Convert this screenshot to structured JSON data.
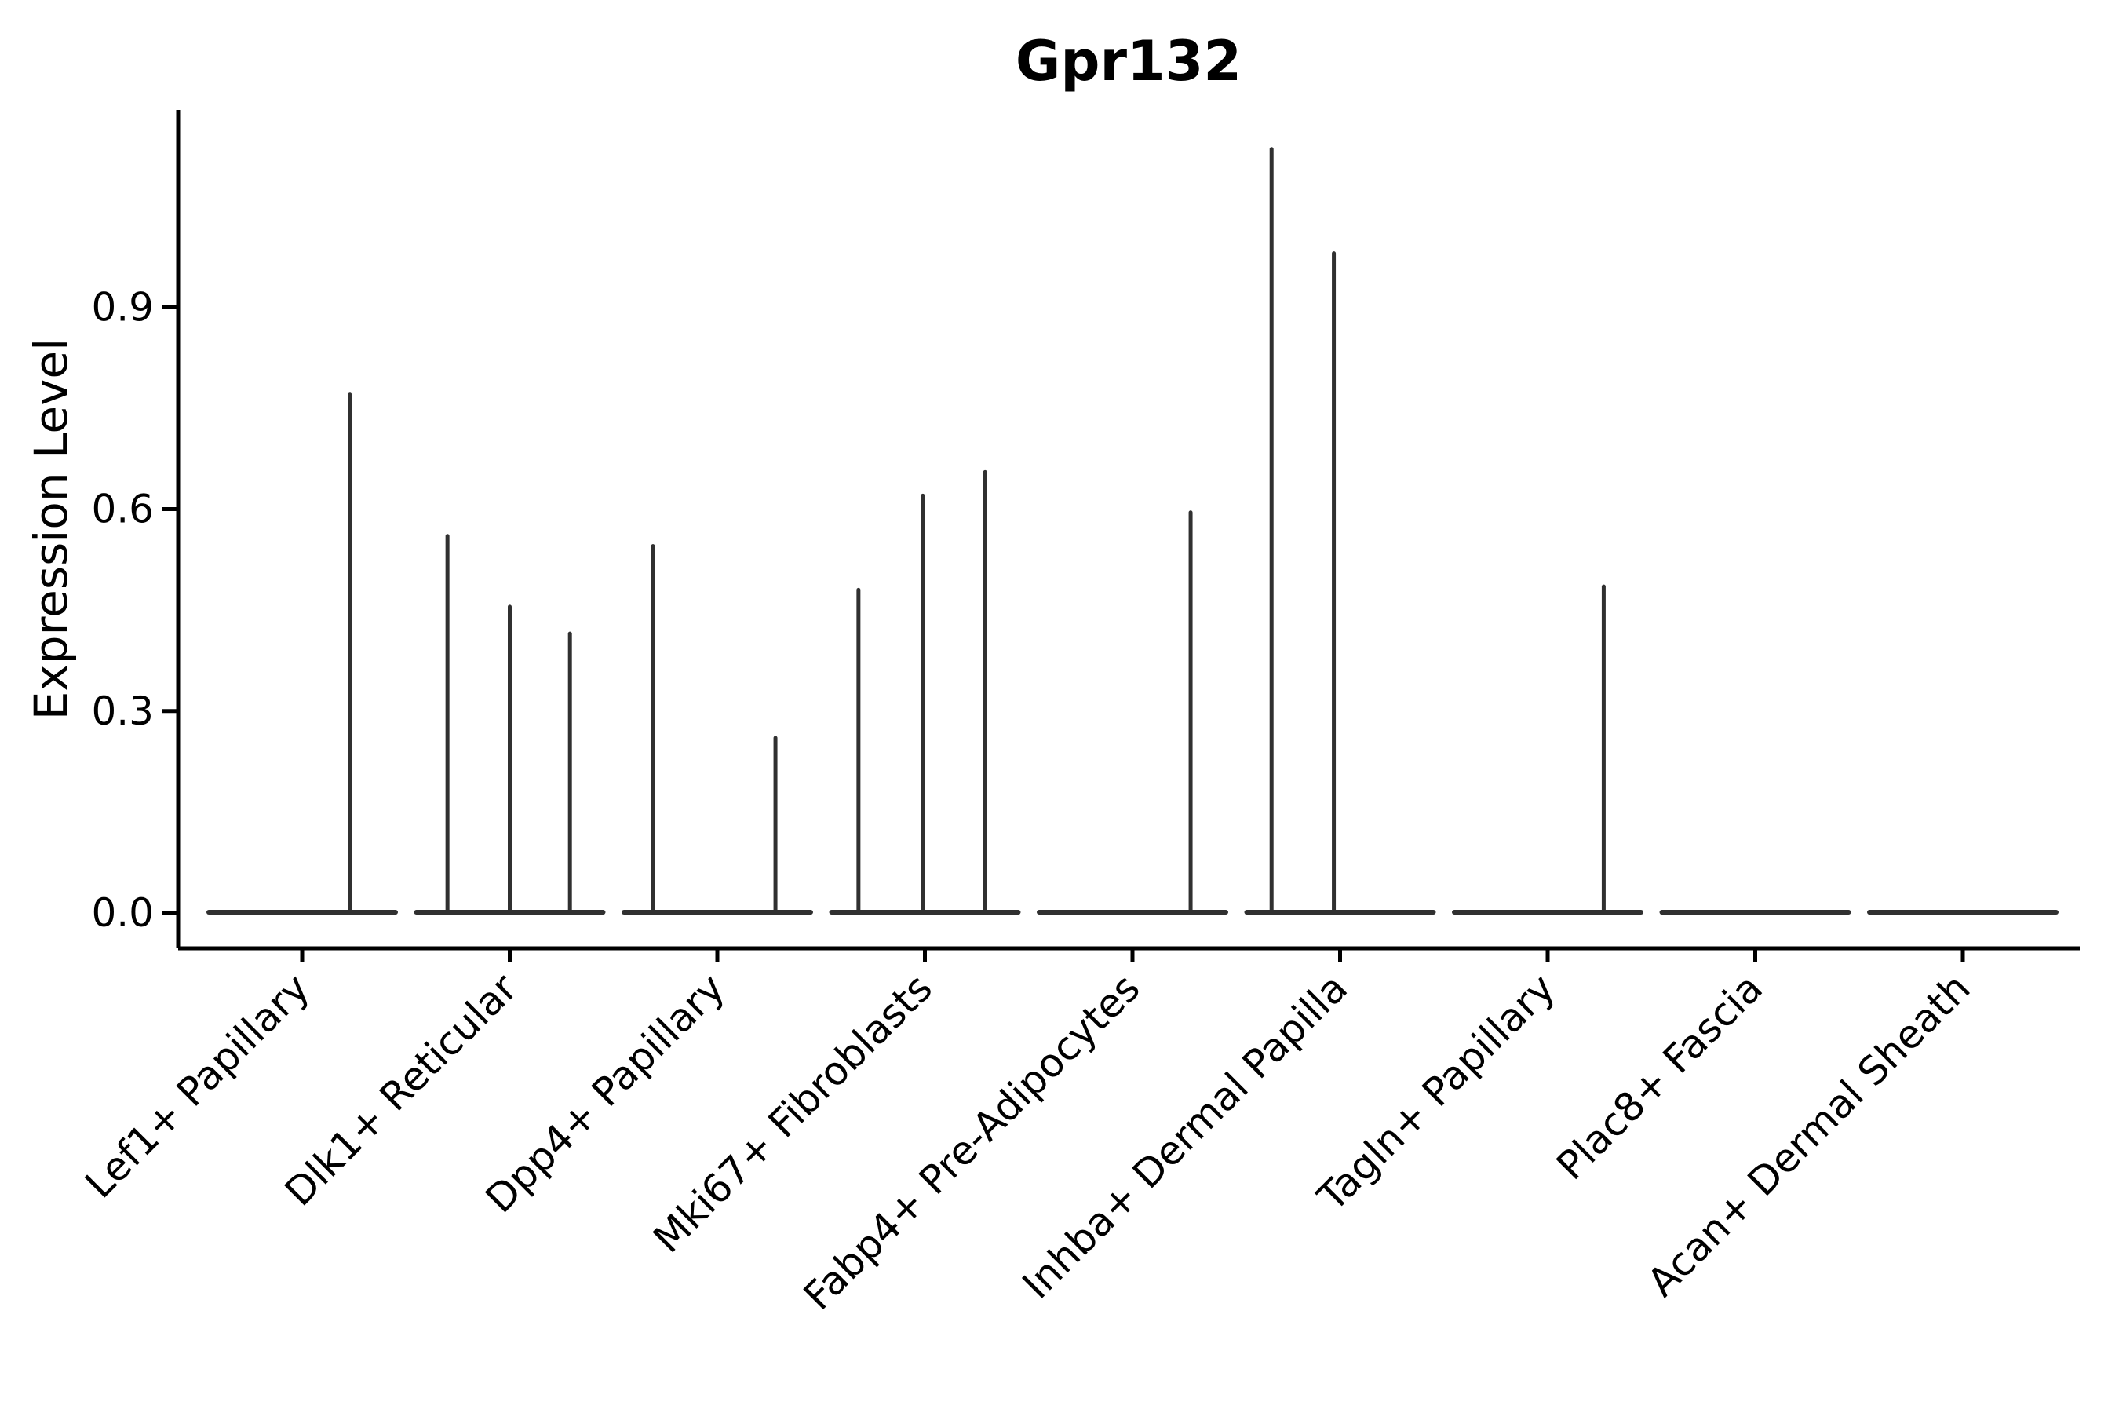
{
  "title": "Gpr132",
  "chart_data": {
    "type": "violin",
    "title": "Gpr132",
    "xlabel": "",
    "ylabel": "Expression Level",
    "legend_position": "none",
    "grid": false,
    "ylim": [
      -0.05,
      1.19
    ],
    "yticks": [
      {
        "value": 0.0,
        "label": "0.0"
      },
      {
        "value": 0.3,
        "label": "0.3"
      },
      {
        "value": 0.6,
        "label": "0.6"
      },
      {
        "value": 0.9,
        "label": "0.9"
      }
    ],
    "colors": {
      "violin": "#303030",
      "axis": "#000000",
      "text": "#000000",
      "background": "#ffffff"
    },
    "violin_halfwidth": 0.45,
    "categories": [
      "Lef1+ Papillary",
      "Dlk1+ Reticular",
      "Dpp4+ Papillary",
      "Mki67+ Fibroblasts",
      "Fabp4+ Pre-Adipocytes",
      "Inhba+ Dermal Papilla",
      "Tagln+ Papillary",
      "Plac8+ Fascia",
      "Acan+ Dermal Sheath"
    ],
    "series": [
      {
        "category": "Lef1+ Papillary",
        "baseline_value": 0.0,
        "spikes": [
          {
            "offset": 0.23,
            "value": 0.77
          }
        ]
      },
      {
        "category": "Dlk1+ Reticular",
        "baseline_value": 0.0,
        "spikes": [
          {
            "offset": -0.3,
            "value": 0.56
          },
          {
            "offset": 0.0,
            "value": 0.455
          },
          {
            "offset": 0.29,
            "value": 0.415
          }
        ]
      },
      {
        "category": "Dpp4+ Papillary",
        "baseline_value": 0.0,
        "spikes": [
          {
            "offset": -0.31,
            "value": 0.545
          },
          {
            "offset": 0.28,
            "value": 0.26
          }
        ]
      },
      {
        "category": "Mki67+ Fibroblasts",
        "baseline_value": 0.0,
        "spikes": [
          {
            "offset": -0.32,
            "value": 0.48
          },
          {
            "offset": -0.01,
            "value": 0.62
          },
          {
            "offset": 0.29,
            "value": 0.655
          }
        ]
      },
      {
        "category": "Fabp4+ Pre-Adipocytes",
        "baseline_value": 0.0,
        "spikes": [
          {
            "offset": 0.28,
            "value": 0.595
          }
        ]
      },
      {
        "category": "Inhba+ Dermal Papilla",
        "baseline_value": 0.0,
        "spikes": [
          {
            "offset": -0.33,
            "value": 1.135
          },
          {
            "offset": -0.03,
            "value": 0.98
          }
        ]
      },
      {
        "category": "Tagln+ Papillary",
        "baseline_value": 0.0,
        "spikes": [
          {
            "offset": 0.27,
            "value": 0.485
          }
        ]
      },
      {
        "category": "Plac8+ Fascia",
        "baseline_value": 0.0,
        "spikes": []
      },
      {
        "category": "Acan+ Dermal Sheath",
        "baseline_value": 0.0,
        "spikes": []
      }
    ]
  }
}
